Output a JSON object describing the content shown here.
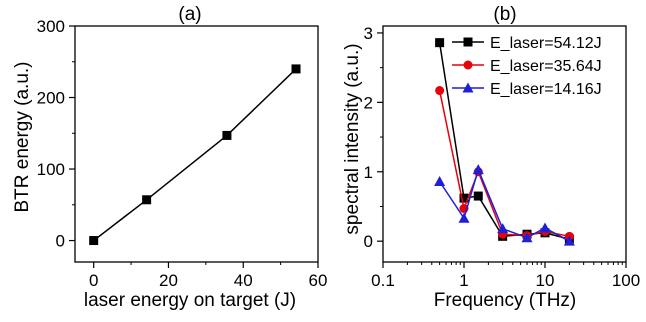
{
  "chart_data": [
    {
      "type": "line",
      "title": "(a)",
      "xlabel": "laser energy on target (J)",
      "ylabel": "BTR energy (a.u.)",
      "xlim": [
        -5,
        60
      ],
      "ylim": [
        -30,
        300
      ],
      "xticks": [
        0,
        20,
        40,
        60
      ],
      "yticks": [
        0,
        100,
        200,
        300
      ],
      "grid": false,
      "series": [
        {
          "color": "#000000",
          "marker": "square",
          "x": [
            0,
            14.16,
            35.64,
            54.12
          ],
          "y": [
            0,
            57,
            147,
            240
          ]
        }
      ]
    },
    {
      "type": "line",
      "title": "(b)",
      "xlabel": "Frequency (THz)",
      "ylabel": "spectral intensity (a.u.)",
      "xscale": "log",
      "xlim": [
        0.1,
        100
      ],
      "ylim": [
        -0.3,
        3.1
      ],
      "xticks": [
        0.1,
        1,
        10,
        100
      ],
      "xtick_labels": [
        "0.1",
        "1",
        "10",
        "100"
      ],
      "yticks": [
        0,
        1,
        2,
        3
      ],
      "grid": false,
      "legend_position": "top-right",
      "series": [
        {
          "name": "E_laser=54.12J",
          "color": "#000000",
          "marker": "square",
          "x": [
            0.5,
            1,
            1.5,
            3,
            6,
            10,
            20
          ],
          "y": [
            2.86,
            0.62,
            0.65,
            0.07,
            0.1,
            0.12,
            0.03
          ]
        },
        {
          "name": "E_laser=35.64J",
          "color": "#e8000b",
          "marker": "circle",
          "x": [
            0.5,
            1,
            1.5,
            3,
            6,
            10,
            20
          ],
          "y": [
            2.17,
            0.47,
            1.0,
            0.1,
            0.08,
            0.14,
            0.07
          ]
        },
        {
          "name": "E_laser=14.16J",
          "color": "#1f1fd6",
          "marker": "triangle",
          "x": [
            0.5,
            1,
            1.5,
            3,
            6,
            10,
            20
          ],
          "y": [
            0.86,
            0.33,
            1.03,
            0.18,
            0.05,
            0.19,
            0.0
          ]
        }
      ]
    }
  ]
}
